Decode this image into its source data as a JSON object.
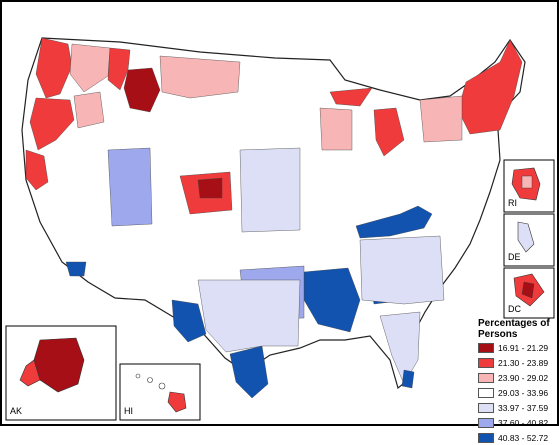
{
  "legend": {
    "title": "Percentages of Persons",
    "classes": [
      {
        "label": "16.91 - 21.29",
        "color": "#a50f15"
      },
      {
        "label": "21.30 - 23.89",
        "color": "#ef3b3b"
      },
      {
        "label": "23.90 - 29.02",
        "color": "#f7b5b5"
      },
      {
        "label": "29.03 - 33.96",
        "color": "#ffffff"
      },
      {
        "label": "33.97 - 37.59",
        "color": "#dcdff5"
      },
      {
        "label": "37.60 - 40.82",
        "color": "#9ea8ec"
      },
      {
        "label": "40.83 - 52.72",
        "color": "#1253b0"
      }
    ]
  },
  "insets": {
    "ak": "AK",
    "hi": "HI",
    "ri": "RI",
    "de": "DE",
    "dc": "DC"
  }
}
